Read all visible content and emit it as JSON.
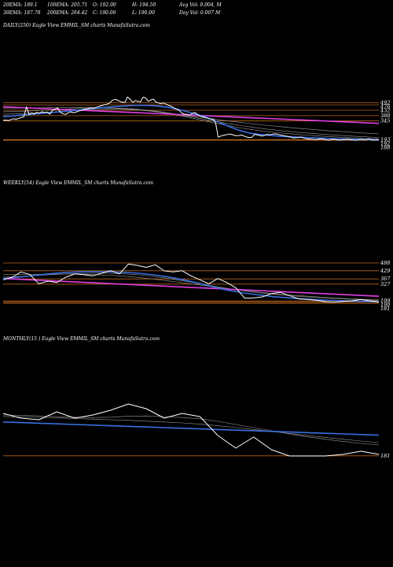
{
  "header": {
    "stats": [
      {
        "label": "20EMA: 189.1"
      },
      {
        "label": "100EMA: 205.71"
      },
      {
        "label": "O: 192.00"
      },
      {
        "label": "H: 194.50"
      },
      {
        "label": "Avg Vol: 0.004, M"
      },
      {
        "label": "30EMA: 187.78"
      },
      {
        "label": "200EMA: 264.42"
      },
      {
        "label": "C: 190.00"
      },
      {
        "label": "L: 190.00"
      },
      {
        "label": "Day Vol: 0.007 M"
      }
    ]
  },
  "colors": {
    "background": "#000000",
    "price": "#ffffff",
    "ema_blue": "#3a6fe0",
    "trend": "#e040e0",
    "level": "#b8641e",
    "ema_grey": "#9a9a9a"
  },
  "chart_data": [
    {
      "type": "line",
      "panel": "daily",
      "title": "DAILY(250) Eagle   View  EMMIL_SM charts MunafaSutra.com",
      "ylim": [
        150,
        560
      ],
      "levels": [
        492,
        476,
        432,
        388,
        345,
        193,
        192,
        188
      ],
      "tick_labels": [
        "492",
        "476",
        "432",
        "388",
        "345",
        "193",
        "192",
        "188"
      ],
      "series": [
        {
          "role": "price",
          "values": [
            350,
            352,
            348,
            356,
            362,
            358,
            365,
            372,
            380,
            460,
            398,
            410,
            402,
            415,
            408,
            420,
            412,
            418,
            400,
            430,
            440,
            452,
            418,
            405,
            398,
            410,
            420,
            412,
            416,
            425,
            430,
            436,
            440,
            445,
            452,
            448,
            456,
            462,
            470,
            476,
            482,
            488,
            510,
            520,
            515,
            505,
            498,
            494,
            540,
            522,
            498,
            510,
            505,
            500,
            538,
            532,
            505,
            515,
            522,
            498,
            490,
            485,
            492,
            480,
            470,
            462,
            450,
            440,
            430,
            408,
            400,
            398,
            392,
            406,
            414,
            398,
            386,
            380,
            372,
            366,
            360,
            360,
            330,
            212,
            222,
            228,
            232,
            238,
            236,
            230,
            224,
            226,
            230,
            222,
            214,
            210,
            212,
            236,
            232,
            226,
            222,
            228,
            236,
            232,
            238,
            240,
            236,
            232,
            226,
            222,
            218,
            214,
            206,
            208,
            210,
            214,
            206,
            200,
            198,
            196,
            194,
            192,
            198,
            200,
            194,
            190,
            188,
            196,
            194,
            190,
            188,
            192,
            194,
            196,
            192,
            190,
            188,
            189,
            194,
            192,
            190,
            200,
            192,
            188,
            190,
            190
          ]
        },
        {
          "role": "ema-blue",
          "values": [
            380,
            385,
            392,
            398,
            405,
            412,
            418,
            425,
            432,
            440,
            448,
            455,
            460,
            465,
            470,
            472,
            470,
            465,
            455,
            440,
            422,
            400,
            380,
            352,
            320,
            290,
            262,
            245,
            235,
            228,
            222,
            218,
            214,
            210,
            207,
            204,
            201,
            199,
            197,
            195,
            193,
            192
          ]
        },
        {
          "role": "ema-grey",
          "values": [
            400,
            402,
            405,
            408,
            412,
            416,
            420,
            425,
            430,
            434,
            438,
            440,
            441,
            440,
            437,
            432,
            425,
            416,
            405,
            392,
            378,
            362,
            345,
            330,
            315,
            300,
            288,
            276,
            266,
            257,
            249,
            242,
            236,
            230,
            225,
            220,
            216,
            212,
            208,
            205,
            202,
            200
          ]
        },
        {
          "role": "ema-grey",
          "values": [
            420,
            421,
            423,
            426,
            430,
            434,
            438,
            442,
            446,
            449,
            451,
            452,
            451,
            448,
            444,
            438,
            430,
            421,
            410,
            398,
            385,
            371,
            357,
            343,
            330,
            318,
            307,
            296,
            286,
            277,
            269,
            261,
            254,
            248,
            242,
            236,
            231,
            226,
            222,
            218,
            214,
            211
          ]
        },
        {
          "role": "ema-grey",
          "values": [
            450,
            450,
            450,
            451,
            452,
            453,
            454,
            455,
            455,
            455,
            454,
            452,
            449,
            445,
            440,
            434,
            427,
            419,
            410,
            400,
            390,
            380,
            370,
            360,
            350,
            341,
            332,
            323,
            315,
            307,
            300,
            293,
            286,
            280,
            274,
            268,
            263,
            258,
            253,
            248,
            244,
            240
          ]
        },
        {
          "role": "trend",
          "values": [
            460,
            445,
            430,
            415,
            400,
            385,
            370,
            355,
            340,
            325
          ]
        }
      ]
    },
    {
      "type": "line",
      "panel": "weekly",
      "title": "WEEKLY(54) Eagle   View  EMMIL_SM charts MunafaSutra.com",
      "ylim": [
        140,
        620
      ],
      "levels": [
        488,
        429,
        367,
        327,
        199,
        190,
        181
      ],
      "tick_labels": [
        "488",
        "429",
        "367",
        "327",
        "199",
        "190",
        "181"
      ],
      "series": [
        {
          "role": "price",
          "values": [
            360,
            380,
            420,
            400,
            330,
            350,
            340,
            380,
            405,
            400,
            390,
            410,
            430,
            405,
            480,
            470,
            455,
            475,
            428,
            420,
            430,
            390,
            360,
            330,
            370,
            340,
            300,
            220,
            222,
            230,
            255,
            265,
            240,
            215,
            210,
            205,
            192,
            190,
            195,
            200,
            210,
            200,
            190
          ]
        },
        {
          "role": "ema-blue",
          "values": [
            370,
            380,
            392,
            405,
            415,
            420,
            422,
            421,
            418,
            410,
            398,
            382,
            360,
            335,
            305,
            280,
            260,
            245,
            232,
            222,
            214,
            208,
            203,
            199,
            196,
            193
          ]
        },
        {
          "role": "ema-grey",
          "values": [
            380,
            385,
            392,
            398,
            404,
            408,
            410,
            410,
            406,
            398,
            386,
            370,
            352,
            332,
            312,
            293,
            276,
            262,
            250,
            240,
            231,
            224,
            218,
            212,
            207,
            203
          ]
        },
        {
          "role": "ema-grey",
          "values": [
            400,
            401,
            402,
            403,
            404,
            403,
            400,
            395,
            388,
            378,
            366,
            352,
            337,
            321,
            306,
            291,
            278,
            266,
            255,
            245,
            237,
            229,
            222,
            216,
            211,
            207
          ]
        },
        {
          "role": "trend",
          "values": [
            370,
            355,
            340,
            325,
            310,
            295,
            280,
            265,
            250,
            235
          ]
        }
      ]
    },
    {
      "type": "line",
      "panel": "monthly",
      "title": "MONTHLY(15                 ) Eagle   View  EMMIL_SM charts MunafaSutra.com",
      "ylim": [
        100,
        600
      ],
      "levels": [
        181
      ],
      "tick_labels": [
        "181"
      ],
      "series": [
        {
          "role": "price",
          "values": [
            450,
            420,
            410,
            460,
            420,
            440,
            470,
            510,
            480,
            420,
            450,
            430,
            310,
            230,
            300,
            220,
            180,
            180,
            180,
            190,
            210,
            190
          ]
        },
        {
          "role": "ema-blue",
          "values": [
            395,
            392,
            388,
            384,
            380,
            376,
            372,
            368,
            364,
            360,
            356,
            352,
            348,
            344,
            340,
            336,
            332,
            328,
            324,
            320,
            316,
            312
          ]
        },
        {
          "role": "ema-grey",
          "values": [
            440,
            438,
            434,
            430,
            426,
            424,
            426,
            432,
            434,
            430,
            424,
            416,
            400,
            380,
            360,
            340,
            320,
            302,
            286,
            272,
            260,
            250
          ]
        },
        {
          "role": "ema-grey",
          "values": [
            430,
            428,
            425,
            422,
            418,
            414,
            410,
            406,
            401,
            396,
            390,
            382,
            372,
            360,
            348,
            336,
            323,
            310,
            298,
            286,
            275,
            265
          ]
        }
      ]
    }
  ]
}
